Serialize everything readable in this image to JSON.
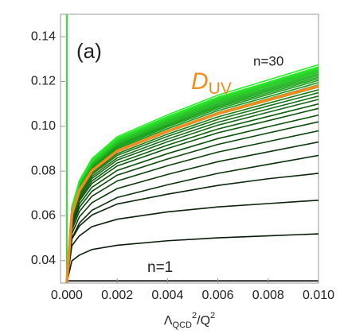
{
  "chart_data": {
    "type": "line",
    "x": [
      0,
      0.0002,
      0.0005,
      0.001,
      0.002,
      0.004,
      0.006,
      0.008,
      0.01
    ],
    "xlim": [
      -0.00025,
      0.01
    ],
    "ylim": [
      0.03,
      0.15
    ],
    "xticks": [
      {
        "value": 0,
        "label": "0.000"
      },
      {
        "value": 0.002,
        "label": "0.002"
      },
      {
        "value": 0.004,
        "label": "0.004"
      },
      {
        "value": 0.006,
        "label": "0.006"
      },
      {
        "value": 0.008,
        "label": "0.008"
      },
      {
        "value": 0.01,
        "label": "0.010"
      }
    ],
    "yticks": [
      0.04,
      0.06,
      0.08,
      {
        "value": 0.1,
        "label": "0.10"
      },
      0.12,
      0.14
    ],
    "x_label": [
      "Λ",
      "QCD",
      "2",
      "/Q",
      "2"
    ],
    "vline_x": 0,
    "vline_color": "#33dd33",
    "series": [
      {
        "color": "#000000",
        "values": [
          0.031,
          0.031,
          0.031,
          0.031,
          0.031,
          0.031,
          0.031,
          0.031,
          0.031
        ]
      },
      {
        "color": "#0a1a0a",
        "values": [
          0.03,
          0.0399,
          0.0425,
          0.045,
          0.0469,
          0.0489,
          0.0502,
          0.0511,
          0.052
        ]
      },
      {
        "color": "#0a220a",
        "values": [
          0.03,
          0.0467,
          0.0511,
          0.0552,
          0.0585,
          0.0618,
          0.064,
          0.0655,
          0.067
        ]
      },
      {
        "color": "#0a290a",
        "values": [
          0.03,
          0.0496,
          0.0555,
          0.0604,
          0.0653,
          0.0697,
          0.0736,
          0.0766,
          0.079
        ]
      },
      {
        "color": "#0a310a",
        "values": [
          0.03,
          0.05,
          0.0568,
          0.0625,
          0.0682,
          0.0739,
          0.079,
          0.083,
          0.087
        ]
      },
      {
        "color": "#0a380a",
        "values": [
          0.03,
          0.0521,
          0.0596,
          0.0659,
          0.0722,
          0.0785,
          0.0842,
          0.0886,
          0.093
        ]
      },
      {
        "color": "#0a400a",
        "values": [
          0.03,
          0.0538,
          0.062,
          0.0688,
          0.0756,
          0.0824,
          0.0885,
          0.0932,
          0.098
        ]
      },
      {
        "color": "#0a470a",
        "values": [
          0.03,
          0.0552,
          0.0638,
          0.071,
          0.0782,
          0.0854,
          0.0919,
          0.097,
          0.102
        ]
      },
      {
        "color": "#0a4f0a",
        "values": [
          0.03,
          0.0563,
          0.0653,
          0.0728,
          0.0803,
          0.0878,
          0.0945,
          0.0998,
          0.105
        ]
      },
      {
        "color": "#0a570a",
        "values": [
          0.03,
          0.0573,
          0.0667,
          0.0745,
          0.0823,
          0.0901,
          0.0971,
          0.1025,
          0.108
        ]
      },
      {
        "color": "#0a5e0a",
        "values": [
          0.03,
          0.058,
          0.0676,
          0.0756,
          0.0836,
          0.0916,
          0.0988,
          0.1044,
          0.11
        ]
      },
      {
        "color": "#186618",
        "values": [
          0.03,
          0.0587,
          0.0685,
          0.0767,
          0.0849,
          0.0931,
          0.1005,
          0.1063,
          0.112
        ]
      },
      {
        "color": "#186d18",
        "values": [
          0.03,
          0.0592,
          0.0692,
          0.0776,
          0.0859,
          0.0943,
          0.1018,
          0.1077,
          0.1135
        ]
      },
      {
        "color": "#187518",
        "values": [
          0.03,
          0.0598,
          0.07,
          0.0785,
          0.087,
          0.0955,
          0.1031,
          0.1091,
          0.115
        ]
      },
      {
        "color": "#187c18",
        "values": [
          0.03,
          0.0602,
          0.0706,
          0.0792,
          0.0878,
          0.0965,
          0.1042,
          0.1103,
          0.1163
        ]
      },
      {
        "color": "#188418",
        "values": [
          0.03,
          0.0606,
          0.0711,
          0.0799,
          0.0886,
          0.0974,
          0.1053,
          0.1114,
          0.1175
        ]
      },
      {
        "color": "#188c18",
        "values": [
          0.03,
          0.061,
          0.0716,
          0.0804,
          0.0893,
          0.0981,
          0.1061,
          0.1123,
          0.1185
        ]
      },
      {
        "color": "#189318",
        "values": [
          0.03,
          0.0613,
          0.0721,
          0.081,
          0.09,
          0.0989,
          0.107,
          0.1132,
          0.1195
        ]
      },
      {
        "color": "#189b18",
        "values": [
          0.03,
          0.0617,
          0.0725,
          0.0816,
          0.0906,
          0.0997,
          0.1078,
          0.1142,
          0.1205
        ]
      },
      {
        "color": "#18a218",
        "values": [
          0.03,
          0.062,
          0.0729,
          0.082,
          0.0912,
          0.1003,
          0.1085,
          0.1149,
          0.1213
        ]
      },
      {
        "color": "#18aa18",
        "values": [
          0.03,
          0.0622,
          0.0732,
          0.0824,
          0.0916,
          0.1008,
          0.1091,
          0.1156,
          0.122
        ]
      },
      {
        "color": "#28b128",
        "values": [
          0.03,
          0.0624,
          0.0736,
          0.0828,
          0.0921,
          0.1014,
          0.1097,
          0.1162,
          0.1227
        ]
      },
      {
        "color": "#28b928",
        "values": [
          0.03,
          0.0627,
          0.0739,
          0.0832,
          0.0925,
          0.1018,
          0.1102,
          0.1168,
          0.1233
        ]
      },
      {
        "color": "#28c128",
        "values": [
          0.03,
          0.0629,
          0.0741,
          0.0835,
          0.0929,
          0.1023,
          0.1108,
          0.1173,
          0.1239
        ]
      },
      {
        "color": "#28c828",
        "values": [
          0.03,
          0.0631,
          0.0744,
          0.0839,
          0.0933,
          0.1028,
          0.1113,
          0.1179,
          0.1245
        ]
      },
      {
        "color": "#28d028",
        "values": [
          0.03,
          0.0633,
          0.0747,
          0.0842,
          0.0937,
          0.1032,
          0.1117,
          0.1184,
          0.125
        ]
      },
      {
        "color": "#28d728",
        "values": [
          0.03,
          0.0634,
          0.0749,
          0.0844,
          0.094,
          0.1035,
          0.1121,
          0.1188,
          0.1255
        ]
      },
      {
        "color": "#28df28",
        "values": [
          0.03,
          0.0636,
          0.0751,
          0.0847,
          0.0943,
          0.1039,
          0.1126,
          0.1193,
          0.126
        ]
      },
      {
        "color": "#28e628",
        "values": [
          0.03,
          0.0638,
          0.0754,
          0.085,
          0.0947,
          0.1043,
          0.113,
          0.1197,
          0.1265
        ]
      },
      {
        "color": "#28ee28",
        "values": [
          0.03,
          0.0641,
          0.0758,
          0.0856,
          0.0953,
          0.1051,
          0.1139,
          0.1207,
          0.1275
        ]
      },
      {
        "color": "#f28c1e",
        "values": [
          0.03,
          0.0608,
          0.0714,
          0.0802,
          0.089,
          0.0978,
          0.1057,
          0.1118,
          0.118
        ]
      }
    ],
    "annotations": {
      "panel": "(a)",
      "n_high": "n=30",
      "n_low": "n=1",
      "d_main": "D",
      "d_sub": "UV"
    },
    "annotation_colors": {
      "n_high": "#33dd33",
      "d": "#f28c1e",
      "panel": "#000000",
      "n_low": "#000000"
    }
  }
}
